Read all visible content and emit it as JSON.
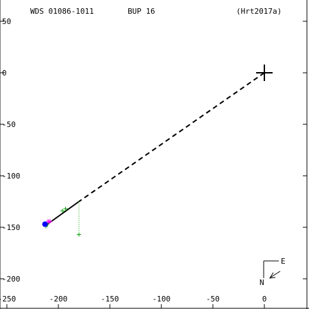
{
  "header": {
    "left": "WDS 01086-1011",
    "center": "BUP  16",
    "right": "(Hrt2017a)"
  },
  "compass": {
    "east": "E",
    "north": "N"
  },
  "colors": {
    "axis": "#000000",
    "primary": "#000000",
    "orbit_path": "#000000",
    "measure_green": "#00a000",
    "measure_magenta": "#ff00ff",
    "latest_point": "#0000ff",
    "residual_line": "#00a000"
  },
  "chart_data": {
    "type": "scatter",
    "title": "",
    "xlabel": "",
    "ylabel": "",
    "xlim": [
      -250,
      40
    ],
    "ylim": [
      -215,
      55
    ],
    "x_ticks": [
      -250,
      -200,
      -150,
      -100,
      -50,
      0
    ],
    "y_ticks": [
      50,
      0,
      -50,
      -100,
      -150,
      -200
    ],
    "primary": {
      "x": 0,
      "y": 0
    },
    "dashed_path": {
      "from": [
        0,
        0
      ],
      "to": [
        -180,
        -125
      ]
    },
    "solid_path": {
      "from": [
        -180,
        -125
      ],
      "to": [
        -212,
        -148
      ]
    },
    "measurements_green": [
      {
        "x": -193,
        "y": -132
      },
      {
        "x": -196,
        "y": -134
      },
      {
        "x": -210,
        "y": -146
      },
      {
        "x": -212,
        "y": -148
      },
      {
        "x": -180,
        "y": -157
      },
      {
        "x": -212,
        "y": -149
      }
    ],
    "measurements_magenta": [
      {
        "x": -208,
        "y": -144
      },
      {
        "x": -209,
        "y": -145
      },
      {
        "x": -210,
        "y": -144
      }
    ],
    "latest_point": {
      "x": -213,
      "y": -147
    },
    "residual_line": {
      "from": [
        -180,
        -125
      ],
      "to": [
        -180,
        -157
      ]
    }
  }
}
